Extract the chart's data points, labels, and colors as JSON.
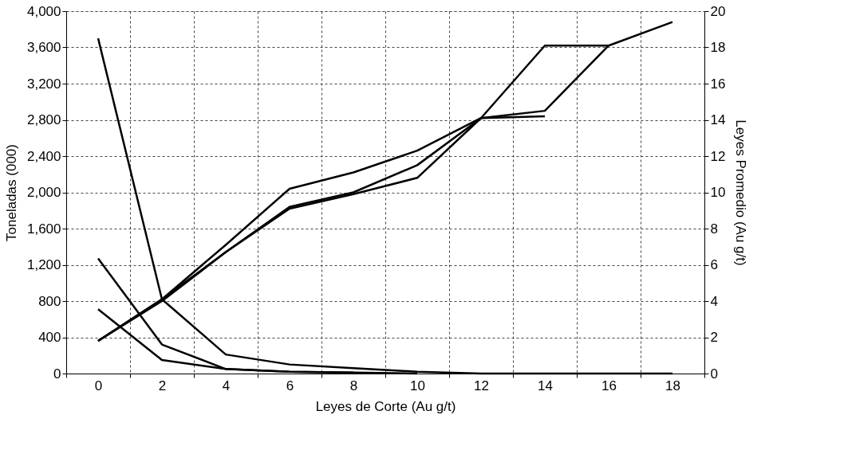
{
  "chart_data": {
    "type": "line",
    "xlabel": "Leyes de Corte (Au g/t)",
    "ylabel": "Toneladas (000)",
    "y2label": "Leyes Promedio (Au g/t)",
    "categories": [
      "0",
      "2",
      "4",
      "6",
      "8",
      "10",
      "12",
      "14",
      "16",
      "18"
    ],
    "ylim": [
      0,
      4000
    ],
    "yticks": [
      0,
      400,
      800,
      {
        "value": 1200,
        "label": "1,200"
      },
      {
        "value": 1600,
        "label": "1,600"
      },
      {
        "value": 2000,
        "label": "2,000"
      },
      {
        "value": 2400,
        "label": "2,400"
      },
      {
        "value": 2800,
        "label": "2,800"
      },
      {
        "value": 3200,
        "label": "3,200"
      },
      {
        "value": 3600,
        "label": "3,600"
      },
      {
        "value": 4000,
        "label": "4,000"
      }
    ],
    "y2lim": [
      0,
      20
    ],
    "y2ticks": [
      0,
      2,
      4,
      6,
      8,
      10,
      12,
      14,
      16,
      18,
      20
    ],
    "grid": true,
    "marker": "none",
    "line_style": "solid",
    "series": [
      {
        "color": "#000000",
        "values": [
          3700,
          820,
          210,
          100,
          60,
          20,
          0,
          0,
          0,
          0
        ]
      },
      {
        "color": "#000000",
        "values": [
          1270,
          320,
          50,
          20,
          10,
          0,
          null,
          null,
          null,
          null
        ]
      },
      {
        "color": "#000000",
        "values": [
          710,
          150,
          50,
          20,
          10,
          null,
          null,
          null,
          null,
          null
        ]
      },
      {
        "color": "#000000",
        "axis": "y2",
        "values": [
          1.8,
          4.1,
          6.7,
          9.2,
          10.0,
          11.5,
          14.1,
          14.5,
          18.1,
          19.4
        ]
      },
      {
        "color": "#000000",
        "axis": "y2",
        "values": [
          1.8,
          4.1,
          7.1,
          10.2,
          11.1,
          12.3,
          14.1,
          14.2,
          null,
          null
        ]
      },
      {
        "color": "#000000",
        "axis": "y2",
        "values": [
          1.8,
          4.0,
          6.7,
          9.1,
          9.9,
          10.8,
          14.1,
          18.1,
          18.1,
          null
        ]
      }
    ]
  }
}
